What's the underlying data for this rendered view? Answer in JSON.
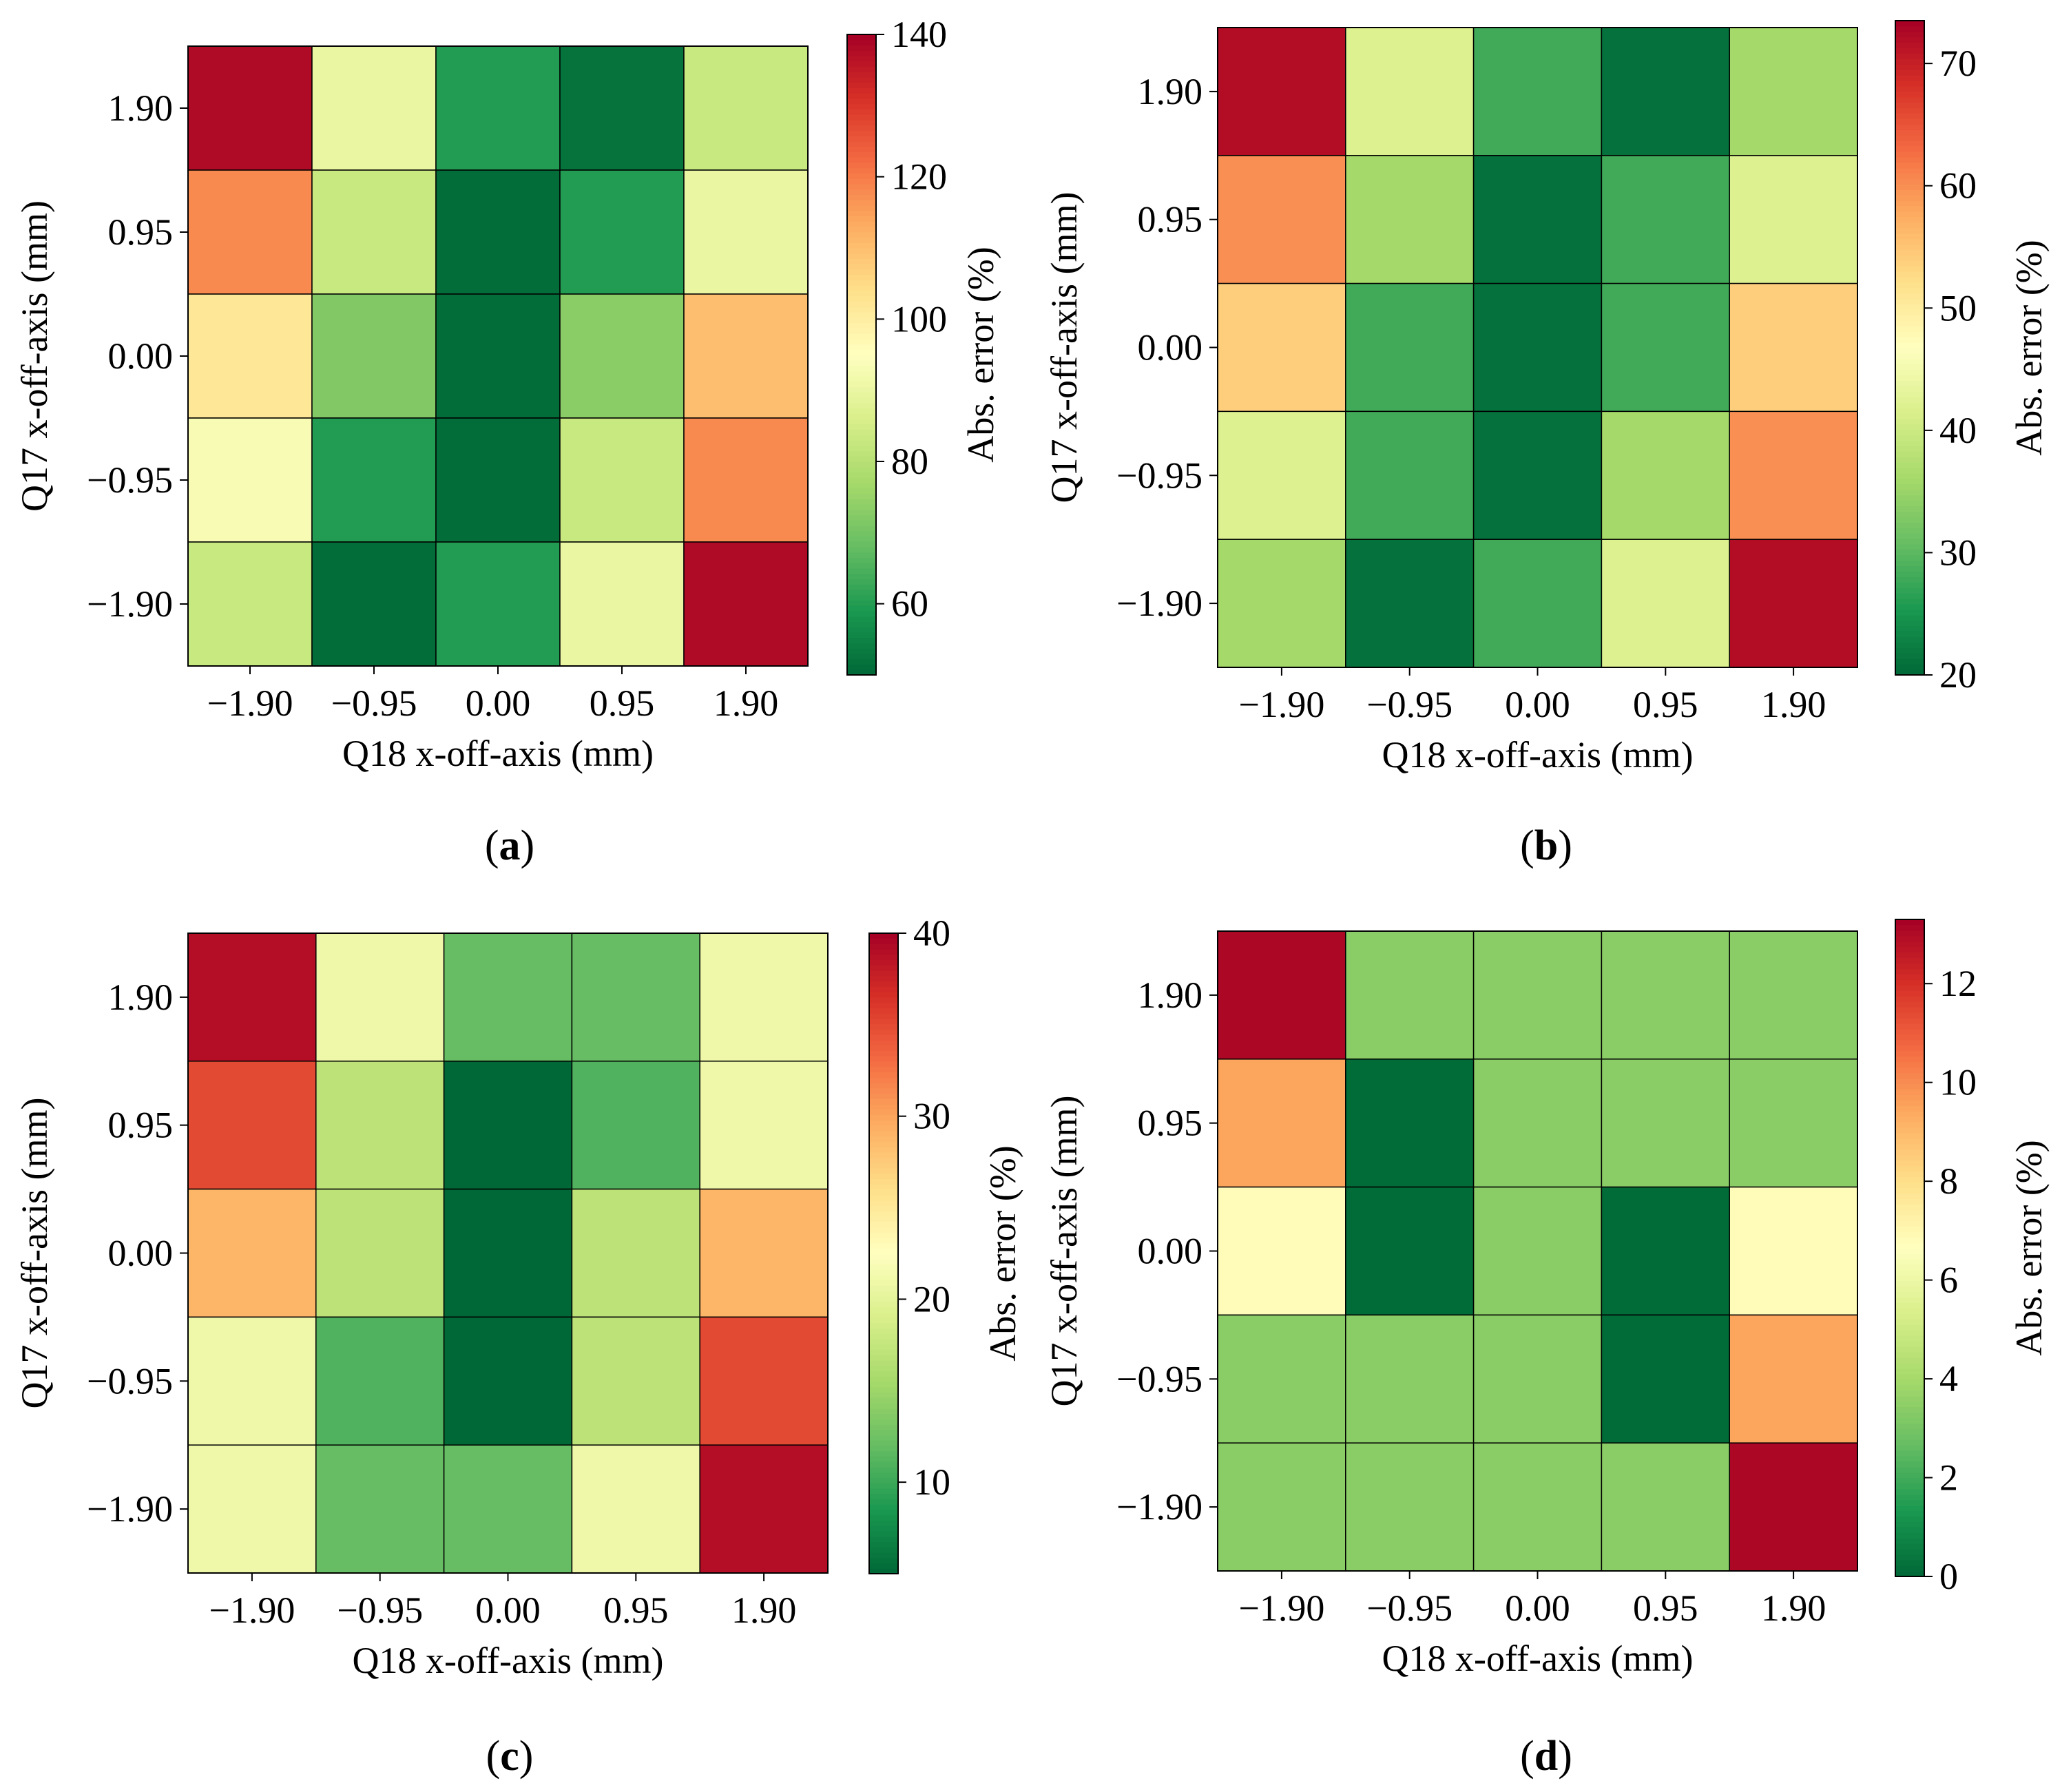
{
  "chart_data": [
    {
      "panel": "(a)",
      "type": "heatmap",
      "xlabel": "Q18 x-off-axis (mm)",
      "ylabel": "Q17 x-off-axis (mm)",
      "x_ticks": [
        "−1.90",
        "−0.95",
        "0.00",
        "0.95",
        "1.90"
      ],
      "y_ticks": [
        "1.90",
        "0.95",
        "0.00",
        "−0.95",
        "−1.90"
      ],
      "colorbar_label": "Abs. error (%)",
      "colorbar_ticks": [
        "60",
        "80",
        "100",
        "120",
        "140"
      ],
      "colorbar_tick_values": [
        60,
        80,
        100,
        120,
        140
      ],
      "vmin": 50,
      "vmax": 140,
      "values": [
        [
          138,
          90,
          60,
          52,
          83
        ],
        [
          118,
          83,
          51,
          60,
          90
        ],
        [
          102,
          72,
          51,
          73,
          110
        ],
        [
          93,
          60,
          51,
          83,
          118
        ],
        [
          83,
          51,
          60,
          90,
          138
        ]
      ]
    },
    {
      "panel": "(b)",
      "type": "heatmap",
      "xlabel": "Q18 x-off-axis (mm)",
      "ylabel": "Q17 x-off-axis (mm)",
      "x_ticks": [
        "−1.90",
        "−0.95",
        "0.00",
        "0.95",
        "1.90"
      ],
      "y_ticks": [
        "1.90",
        "0.95",
        "0.00",
        "−0.95",
        "−1.90"
      ],
      "colorbar_label": "Abs. error (%)",
      "colorbar_ticks": [
        "20",
        "30",
        "40",
        "50",
        "60",
        "70"
      ],
      "colorbar_tick_values": [
        20,
        30,
        40,
        50,
        60,
        70
      ],
      "vmin": 20,
      "vmax": 73.5,
      "values": [
        [
          72,
          42,
          28,
          21,
          36
        ],
        [
          60,
          36,
          21,
          28,
          42
        ],
        [
          54,
          28,
          21,
          28,
          54
        ],
        [
          42,
          28,
          21,
          36,
          60
        ],
        [
          36,
          21,
          28,
          42,
          72
        ]
      ]
    },
    {
      "panel": "(c)",
      "type": "heatmap",
      "xlabel": "Q18 x-off-axis (mm)",
      "ylabel": "Q17 x-off-axis (mm)",
      "x_ticks": [
        "−1.90",
        "−0.95",
        "0.00",
        "0.95",
        "1.90"
      ],
      "y_ticks": [
        "1.90",
        "0.95",
        "0.00",
        "−0.95",
        "−1.90"
      ],
      "colorbar_label": "Abs. error (%)",
      "colorbar_ticks": [
        "10",
        "20",
        "30",
        "40"
      ],
      "colorbar_tick_values": [
        10,
        20,
        30,
        40
      ],
      "vmin": 5,
      "vmax": 40,
      "values": [
        [
          39,
          21,
          12,
          12,
          21
        ],
        [
          35,
          17,
          5,
          11,
          21
        ],
        [
          29,
          17,
          5,
          17,
          29
        ],
        [
          21,
          11,
          5,
          17,
          35
        ],
        [
          21,
          12,
          12,
          21,
          39
        ]
      ]
    },
    {
      "panel": "(d)",
      "type": "heatmap",
      "xlabel": "Q18 x-off-axis (mm)",
      "ylabel": "Q17 x-off-axis (mm)",
      "x_ticks": [
        "−1.90",
        "−0.95",
        "0.00",
        "0.95",
        "1.90"
      ],
      "y_ticks": [
        "1.90",
        "0.95",
        "0.00",
        "−0.95",
        "−1.90"
      ],
      "colorbar_label": "Abs. error (%)",
      "colorbar_ticks": [
        "0",
        "2",
        "4",
        "6",
        "8",
        "10",
        "12"
      ],
      "colorbar_tick_values": [
        0,
        2,
        4,
        6,
        8,
        10,
        12
      ],
      "vmin": 0,
      "vmax": 13.3,
      "values": [
        [
          13.1,
          3.4,
          3.4,
          3.4,
          3.4
        ],
        [
          9.5,
          0.1,
          3.4,
          3.4,
          3.4
        ],
        [
          6.8,
          0.1,
          3.4,
          0.1,
          6.8
        ],
        [
          3.4,
          3.4,
          3.4,
          0.1,
          9.5
        ],
        [
          3.4,
          3.4,
          3.4,
          3.4,
          13.1
        ]
      ]
    }
  ]
}
